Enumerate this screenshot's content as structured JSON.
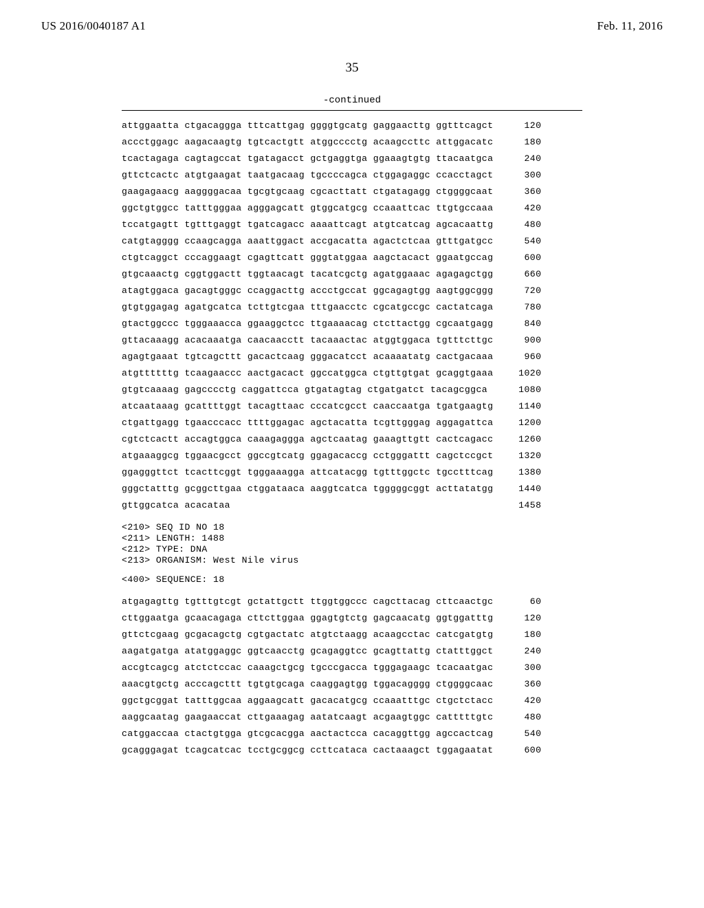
{
  "header": {
    "left": "US 2016/0040187 A1",
    "right": "Feb. 11, 2016"
  },
  "page_number": "35",
  "continued_label": "-continued",
  "seq_top": {
    "rows": [
      {
        "seq": "attggaatta ctgacaggga tttcattgag ggggtgcatg gaggaacttg ggtttcagct",
        "pos": "120"
      },
      {
        "seq": "accctggagc aagacaagtg tgtcactgtt atggcccctg acaagccttc attggacatc",
        "pos": "180"
      },
      {
        "seq": "tcactagaga cagtagccat tgatagacct gctgaggtga ggaaagtgtg ttacaatgca",
        "pos": "240"
      },
      {
        "seq": "gttctcactc atgtgaagat taatgacaag tgccccagca ctggagaggc ccacctagct",
        "pos": "300"
      },
      {
        "seq": "gaagagaacg aaggggacaa tgcgtgcaag cgcacttatt ctgatagagg ctggggcaat",
        "pos": "360"
      },
      {
        "seq": "ggctgtggcc tatttgggaa agggagcatt gtggcatgcg ccaaattcac ttgtgccaaa",
        "pos": "420"
      },
      {
        "seq": "tccatgagtt tgtttgaggt tgatcagacc aaaattcagt atgtcatcag agcacaattg",
        "pos": "480"
      },
      {
        "seq": "catgtagggg ccaagcagga aaattggact accgacatta agactctcaa gtttgatgcc",
        "pos": "540"
      },
      {
        "seq": "ctgtcaggct cccaggaagt cgagttcatt gggtatggaa aagctacact ggaatgccag",
        "pos": "600"
      },
      {
        "seq": "gtgcaaactg cggtggactt tggtaacagt tacatcgctg agatggaaac agagagctgg",
        "pos": "660"
      },
      {
        "seq": "atagtggaca gacagtgggc ccaggacttg accctgccat ggcagagtgg aagtggcggg",
        "pos": "720"
      },
      {
        "seq": "gtgtggagag agatgcatca tcttgtcgaa tttgaacctc cgcatgccgc cactatcaga",
        "pos": "780"
      },
      {
        "seq": "gtactggccc tgggaaacca ggaaggctcc ttgaaaacag ctcttactgg cgcaatgagg",
        "pos": "840"
      },
      {
        "seq": "gttacaaagg acacaaatga caacaacctt tacaaactac atggtggaca tgtttcttgc",
        "pos": "900"
      },
      {
        "seq": "agagtgaaat tgtcagcttt gacactcaag gggacatcct acaaaatatg cactgacaaa",
        "pos": "960"
      },
      {
        "seq": "atgttttttg tcaagaaccc aactgacact ggccatggca ctgttgtgat gcaggtgaaa",
        "pos": "1020"
      },
      {
        "seq": "gtgtcaaaag gagcccctg caggattcca gtgatagtag ctgatgatct tacagcggca",
        "pos": "1080"
      },
      {
        "seq": "atcaataaag gcattttggt tacagttaac cccatcgcct caaccaatga tgatgaagtg",
        "pos": "1140"
      },
      {
        "seq": "ctgattgagg tgaacccacc ttttggagac agctacatta tcgttgggag aggagattca",
        "pos": "1200"
      },
      {
        "seq": "cgtctcactt accagtggca caaagaggga agctcaatag gaaagttgtt cactcagacc",
        "pos": "1260"
      },
      {
        "seq": "atgaaaggcg tggaacgcct ggccgtcatg ggagacaccg cctgggattt cagctccgct",
        "pos": "1320"
      },
      {
        "seq": "ggagggttct tcacttcggt tgggaaagga attcatacgg tgtttggctc tgcctttcag",
        "pos": "1380"
      },
      {
        "seq": "gggctatttg gcggcttgaa ctggataaca aaggtcatca tgggggcggt acttatatgg",
        "pos": "1440"
      },
      {
        "seq": "gttggcatca acacataa",
        "pos": "1458"
      }
    ]
  },
  "meta_block": "<210> SEQ ID NO 18\n<211> LENGTH: 1488\n<212> TYPE: DNA\n<213> ORGANISM: West Nile virus",
  "seq_label": "<400> SEQUENCE: 18",
  "seq_bottom": {
    "rows": [
      {
        "seq": "atgagagttg tgtttgtcgt gctattgctt ttggtggccc cagcttacag cttcaactgc",
        "pos": "60"
      },
      {
        "seq": "cttggaatga gcaacagaga cttcttggaa ggagtgtctg gagcaacatg ggtggatttg",
        "pos": "120"
      },
      {
        "seq": "gttctcgaag gcgacagctg cgtgactatc atgtctaagg acaagcctac catcgatgtg",
        "pos": "180"
      },
      {
        "seq": "aagatgatga atatggaggc ggtcaacctg gcagaggtcc gcagttattg ctatttggct",
        "pos": "240"
      },
      {
        "seq": "accgtcagcg atctctccac caaagctgcg tgcccgacca tgggagaagc tcacaatgac",
        "pos": "300"
      },
      {
        "seq": "aaacgtgctg acccagcttt tgtgtgcaga caaggagtgg tggacagggg ctggggcaac",
        "pos": "360"
      },
      {
        "seq": "ggctgcggat tatttggcaa aggaagcatt gacacatgcg ccaaatttgc ctgctctacc",
        "pos": "420"
      },
      {
        "seq": "aaggcaatag gaagaaccat cttgaaagag aatatcaagt acgaagtggc catttttgtc",
        "pos": "480"
      },
      {
        "seq": "catggaccaa ctactgtgga gtcgcacgga aactactcca cacaggttgg agccactcag",
        "pos": "540"
      },
      {
        "seq": "gcagggagat tcagcatcac tcctgcggcg ccttcataca cactaaagct tggagaatat",
        "pos": "600"
      }
    ]
  }
}
